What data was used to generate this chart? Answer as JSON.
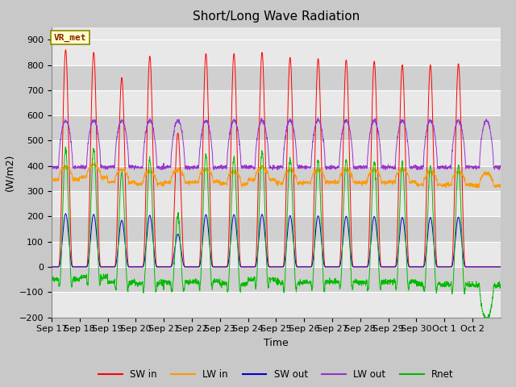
{
  "title": "Short/Long Wave Radiation",
  "ylabel": "(W/m2)",
  "xlabel": "Time",
  "ylim": [
    -200,
    950
  ],
  "yticks": [
    -200,
    -100,
    0,
    100,
    200,
    300,
    400,
    500,
    600,
    700,
    800,
    900
  ],
  "date_labels": [
    "Sep 17",
    "Sep 18",
    "Sep 19",
    "Sep 20",
    "Sep 21",
    "Sep 22",
    "Sep 23",
    "Sep 24",
    "Sep 25",
    "Sep 26",
    "Sep 27",
    "Sep 28",
    "Sep 29",
    "Sep 30",
    "Oct 1",
    "Oct 2"
  ],
  "colors": {
    "SW_in": "#ff0000",
    "LW_in": "#ff9900",
    "SW_out": "#0000cc",
    "LW_out": "#9933cc",
    "Rnet": "#00bb00"
  },
  "legend_labels": [
    "SW in",
    "LW in",
    "SW out",
    "LW out",
    "Rnet"
  ],
  "annotation_text": "VR_met",
  "annotation_fg": "#882200",
  "annotation_bg": "#ffffcc",
  "annotation_border": "#888800",
  "background_color": "#d8d8d8",
  "stripe_light": "#e8e8e8",
  "stripe_dark": "#d0d0d0",
  "title_fontsize": 11,
  "label_fontsize": 9,
  "tick_fontsize": 8,
  "SW_in_peaks": [
    860,
    850,
    750,
    835,
    530,
    845,
    845,
    850,
    830,
    825,
    820,
    815,
    800,
    800,
    805
  ],
  "LW_in_base": 330,
  "LW_out_base": 395,
  "Rnet_night": -75
}
